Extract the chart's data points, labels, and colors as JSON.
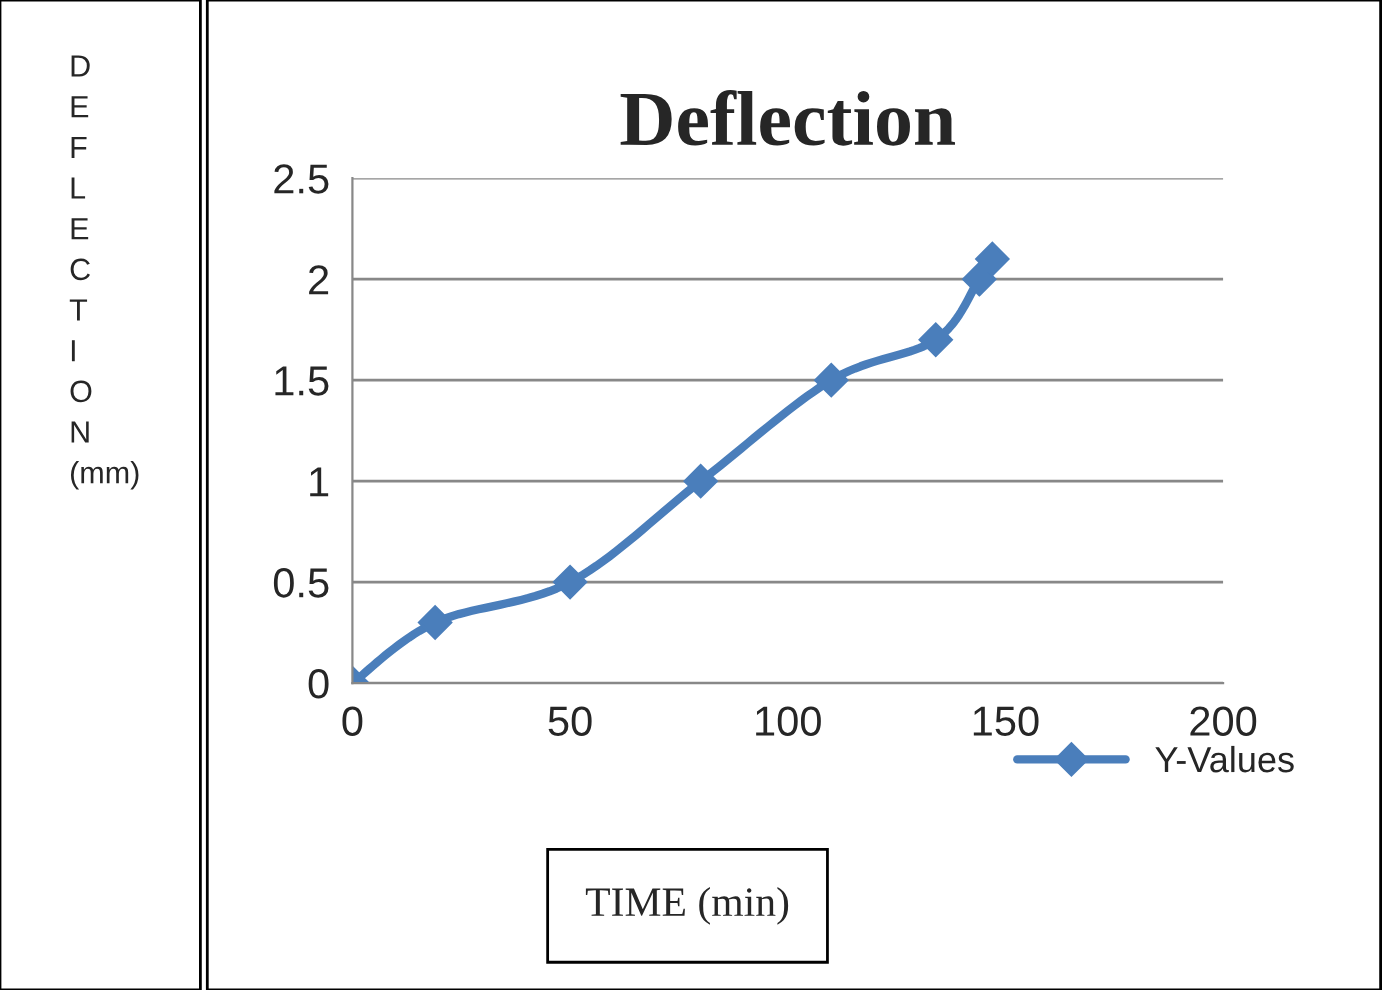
{
  "chart_data": {
    "type": "line",
    "title": "Deflection",
    "xlabel": "TIME (min)",
    "ylabel": "D\nE\nF\nL\nE\nC\nT\nI\nO\nN\n(mm)",
    "x": [
      0,
      19,
      50,
      80,
      110,
      134,
      144,
      147
    ],
    "series": [
      {
        "name": "Y-Values",
        "color": "#4a7ebb",
        "values": [
          0,
          0.3,
          0.5,
          1.0,
          1.5,
          1.7,
          2.0,
          2.1
        ]
      }
    ],
    "xlim": [
      0,
      200
    ],
    "xticks": [
      0,
      50,
      100,
      150,
      200
    ],
    "ylim": [
      0,
      2.5
    ],
    "yticks": [
      0,
      0.5,
      1,
      1.5,
      2,
      2.5
    ],
    "grid": "y",
    "legend": "bottom right",
    "marker": "diamond",
    "line_style": "solid"
  }
}
